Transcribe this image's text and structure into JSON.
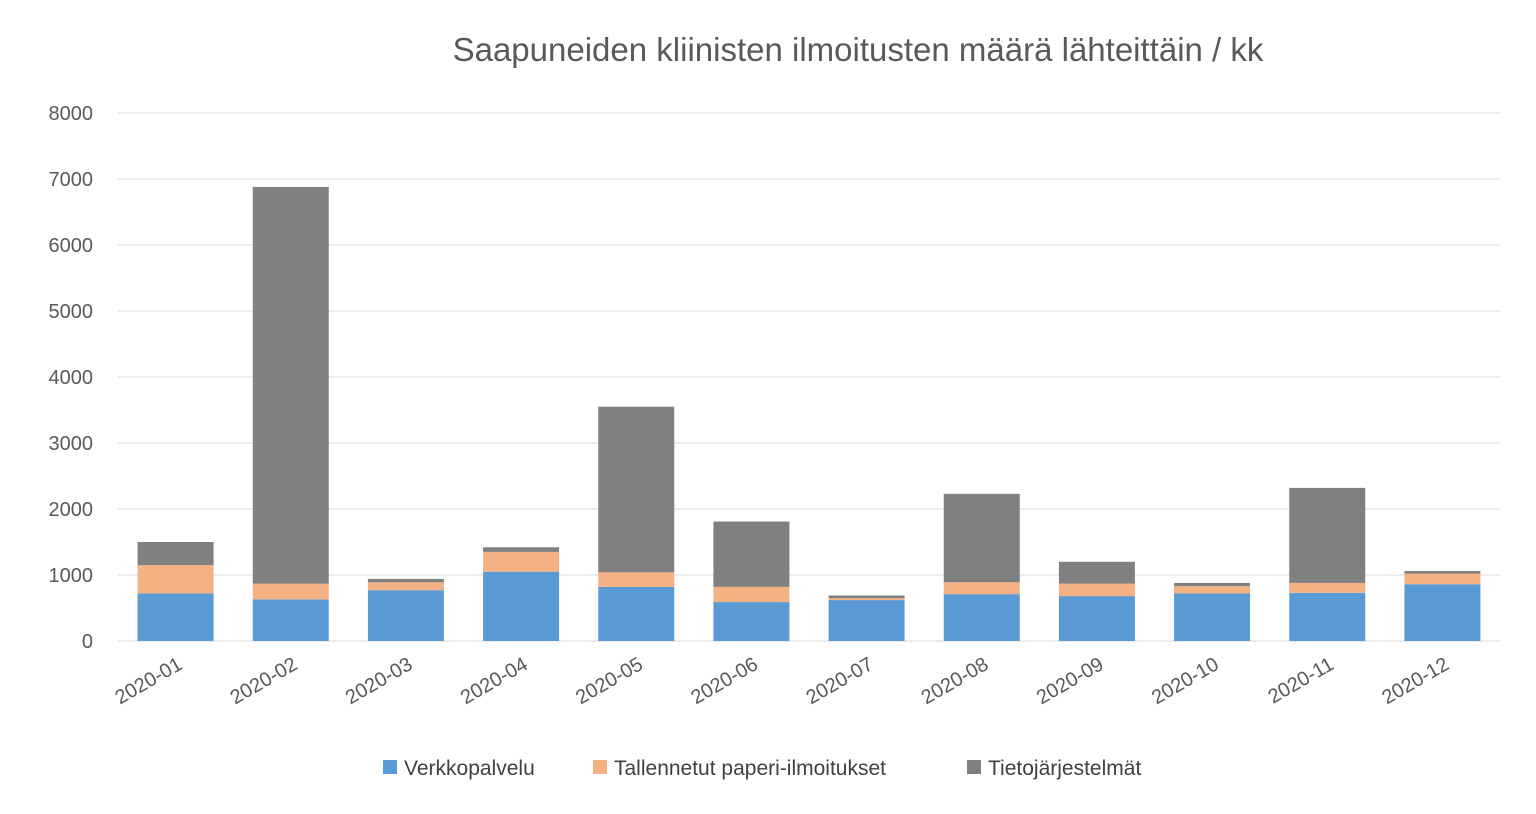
{
  "chart_data": {
    "type": "bar",
    "stacked": true,
    "title": "Saapuneiden kliinisten ilmoitusten määrä lähteittäin / kk",
    "xlabel": "",
    "ylabel": "",
    "categories": [
      "2020-01",
      "2020-02",
      "2020-03",
      "2020-04",
      "2020-05",
      "2020-06",
      "2020-07",
      "2020-08",
      "2020-09",
      "2020-10",
      "2020-11",
      "2020-12"
    ],
    "series": [
      {
        "name": "Verkkopalvelu",
        "color": "#5b9bd5",
        "values": [
          720,
          630,
          770,
          1050,
          820,
          590,
          620,
          710,
          680,
          720,
          730,
          860
        ]
      },
      {
        "name": "Tallennetut paperi-ilmoitukset",
        "color": "#f4b183",
        "values": [
          430,
          240,
          120,
          300,
          220,
          230,
          30,
          180,
          190,
          110,
          150,
          160
        ]
      },
      {
        "name": "Tietojärjestelmät",
        "color": "#808080",
        "values": [
          350,
          6010,
          50,
          70,
          2510,
          990,
          40,
          1340,
          330,
          50,
          1440,
          40
        ]
      }
    ],
    "yticks": [
      "0",
      "1000",
      "2000",
      "3000",
      "4000",
      "5000",
      "6000",
      "7000",
      "8000"
    ],
    "ylim": [
      0,
      8000
    ],
    "grid": true,
    "legend_position": "bottom"
  }
}
